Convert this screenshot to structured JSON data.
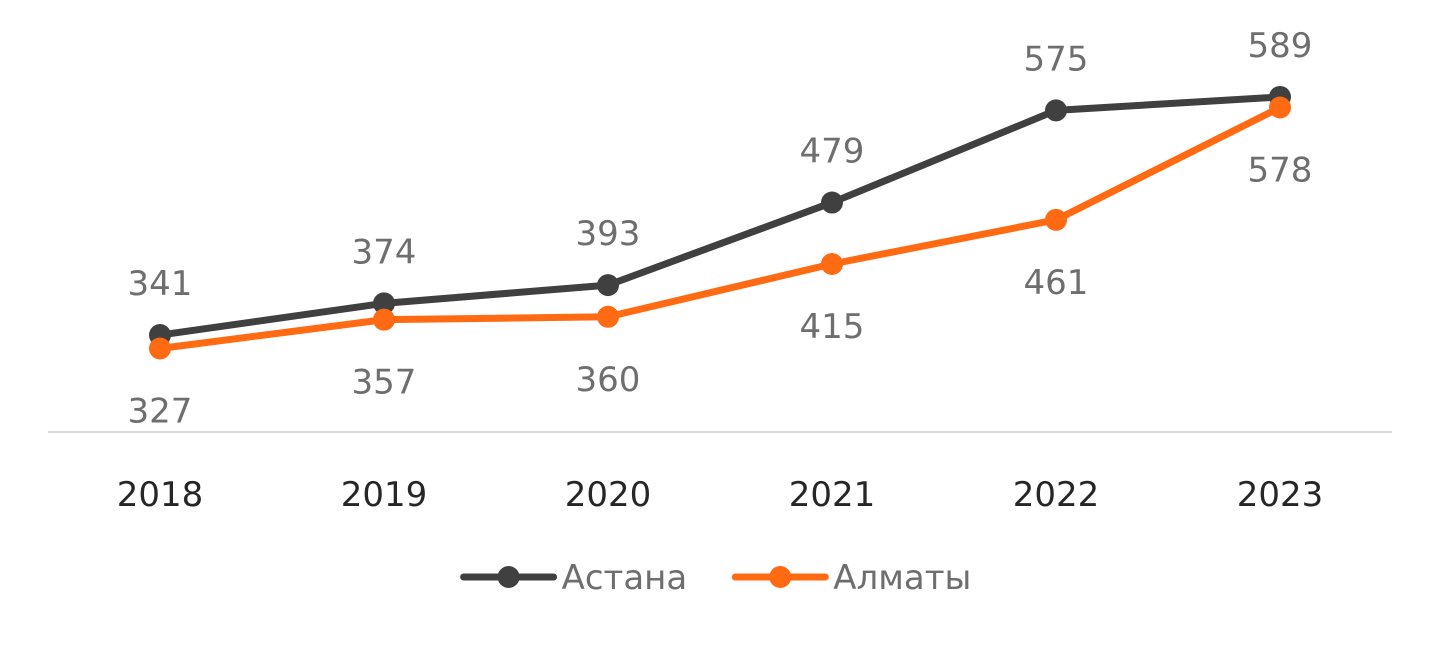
{
  "chart_data": {
    "type": "line",
    "categories": [
      "2018",
      "2019",
      "2020",
      "2021",
      "2022",
      "2023"
    ],
    "series": [
      {
        "name": "Астана",
        "values": [
          341,
          374,
          393,
          479,
          575,
          589
        ],
        "color": "#404040"
      },
      {
        "name": "Алматы",
        "values": [
          327,
          357,
          360,
          415,
          461,
          578
        ],
        "color": "#ff6a13"
      }
    ],
    "title": "",
    "xlabel": "",
    "ylabel": "",
    "ylim": [
      240,
      690
    ],
    "grid": false,
    "legend": "bottom",
    "data_labels": true
  }
}
